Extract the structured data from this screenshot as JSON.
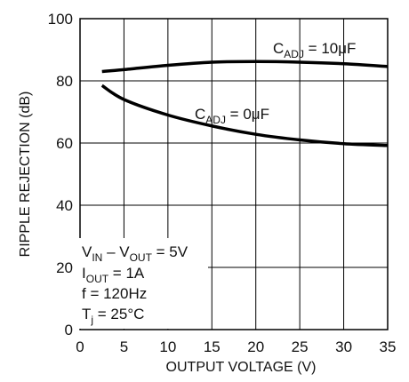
{
  "chart_data": {
    "type": "line",
    "xlabel": "OUTPUT VOLTAGE (V)",
    "ylabel": "RIPPLE REJECTION (dB)",
    "xlim": [
      0,
      35
    ],
    "ylim": [
      0,
      100
    ],
    "x_ticks": [
      "0",
      "5",
      "10",
      "15",
      "20",
      "25",
      "30",
      "35"
    ],
    "y_ticks": [
      "0",
      "20",
      "40",
      "60",
      "80",
      "100"
    ],
    "grid": true,
    "series": [
      {
        "name_main": "C",
        "name_sub": "ADJ",
        "name_rest": " = 10μF",
        "x": [
          2.5,
          5,
          10,
          15,
          20,
          25,
          30,
          35
        ],
        "y": [
          83,
          83.6,
          85,
          86,
          86.2,
          86,
          85.5,
          84.6
        ]
      },
      {
        "name_main": "C",
        "name_sub": "ADJ",
        "name_rest": " = 0μF",
        "x": [
          2.5,
          5,
          10,
          15,
          20,
          25,
          30,
          35
        ],
        "y": [
          78.5,
          74,
          69,
          65.5,
          62.8,
          61,
          59.8,
          59.2
        ]
      }
    ],
    "conditions": [
      {
        "main": "V",
        "sub": "IN",
        "mid": " – V",
        "sub2": "OUT",
        "rest": " = 5V"
      },
      {
        "main": "I",
        "sub": "OUT",
        "mid": " = 1A",
        "sub2": "",
        "rest": ""
      },
      {
        "main": "f = 120Hz",
        "sub": "",
        "mid": "",
        "sub2": "",
        "rest": ""
      },
      {
        "main": "T",
        "sub": "j",
        "mid": " = 25°C",
        "sub2": "",
        "rest": ""
      }
    ]
  }
}
